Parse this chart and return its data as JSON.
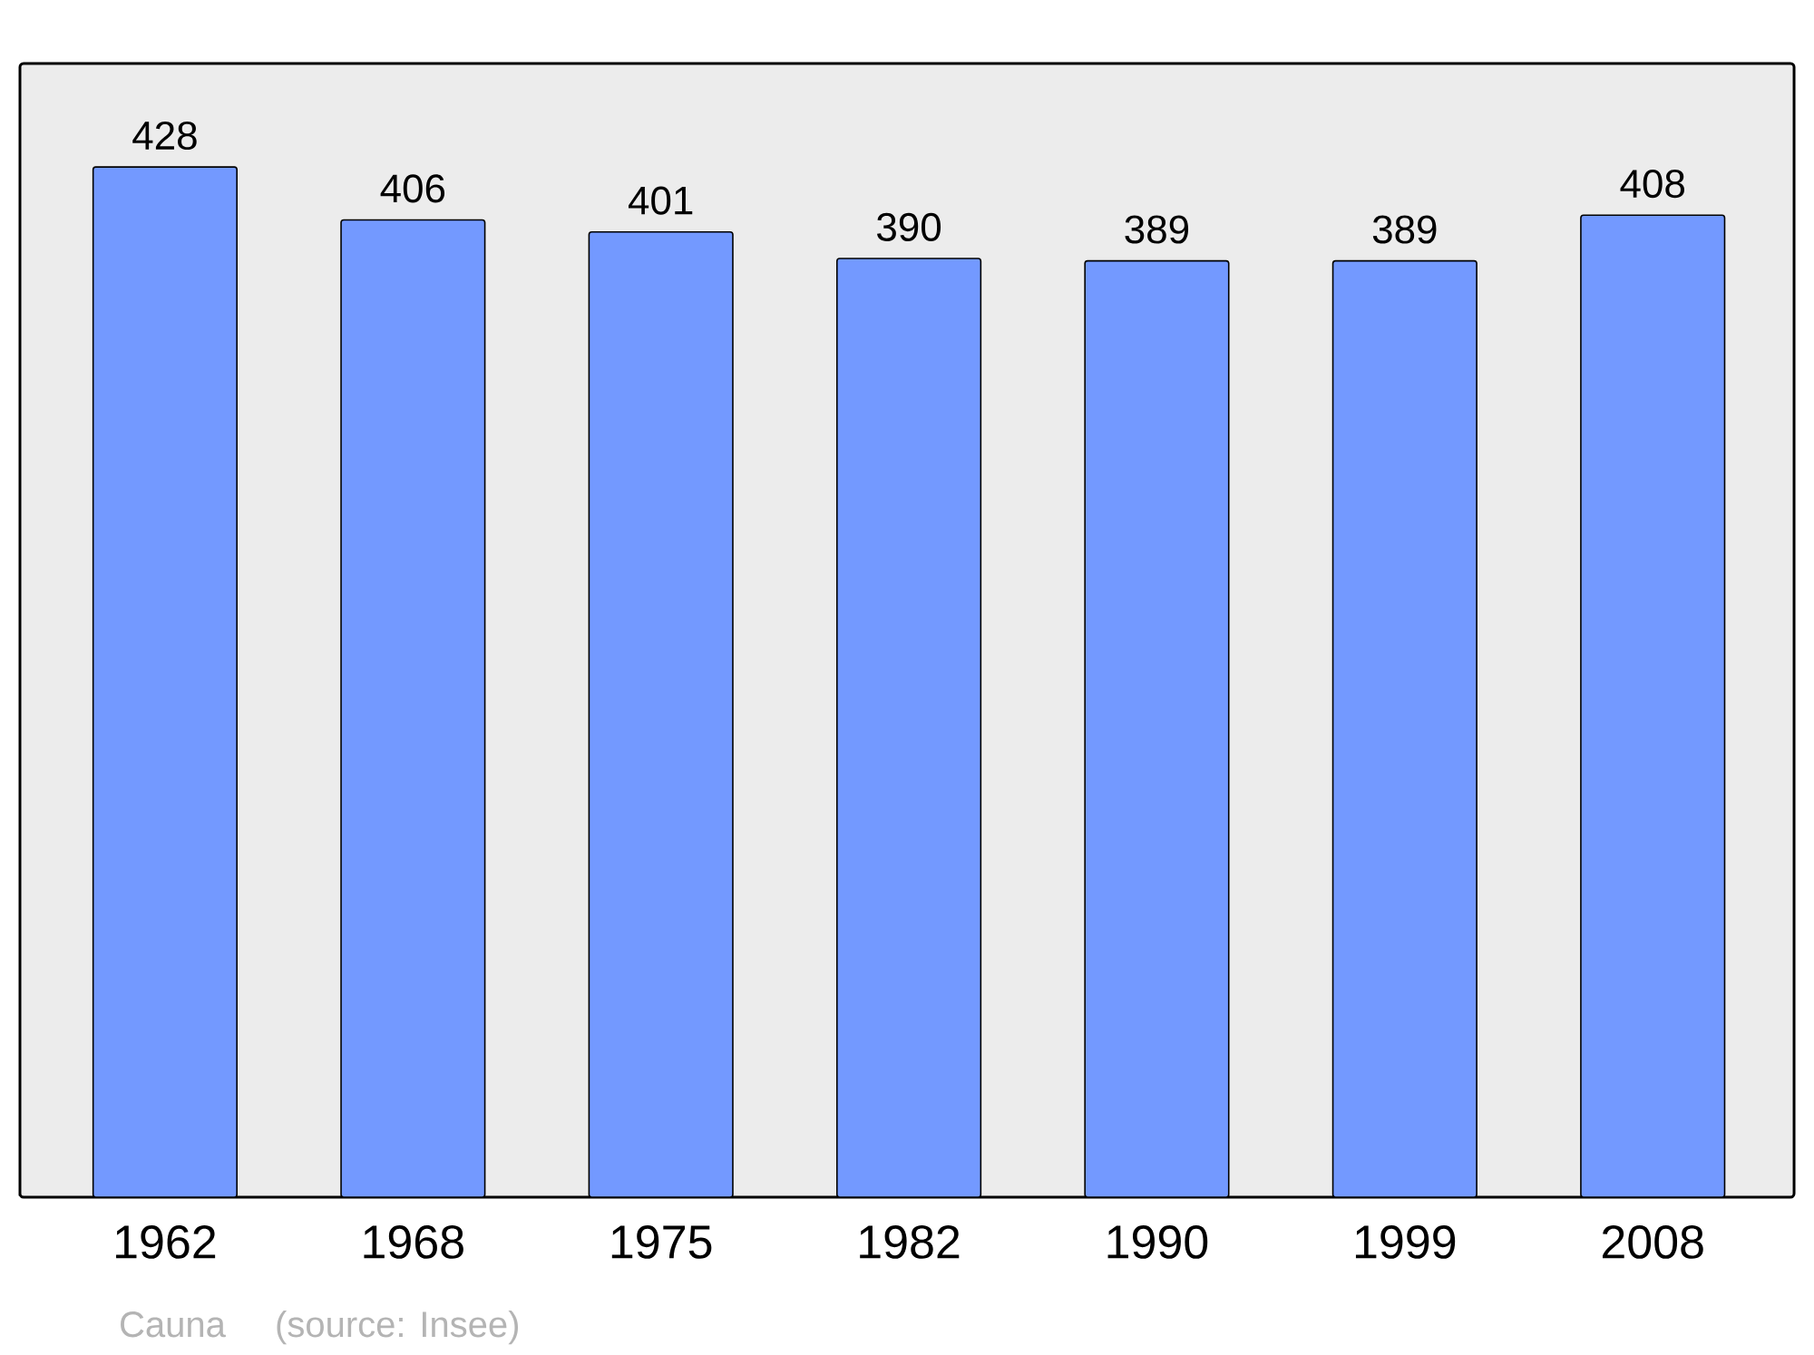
{
  "chart_data": {
    "type": "bar",
    "categories": [
      "1962",
      "1968",
      "1975",
      "1982",
      "1990",
      "1999",
      "2008"
    ],
    "values": [
      428,
      406,
      401,
      390,
      389,
      389,
      408
    ],
    "color": "#7399ff",
    "ylim": [
      0,
      471
    ],
    "data_labels": true,
    "annotations": [
      "Cauna",
      "(source: Insee)"
    ]
  }
}
